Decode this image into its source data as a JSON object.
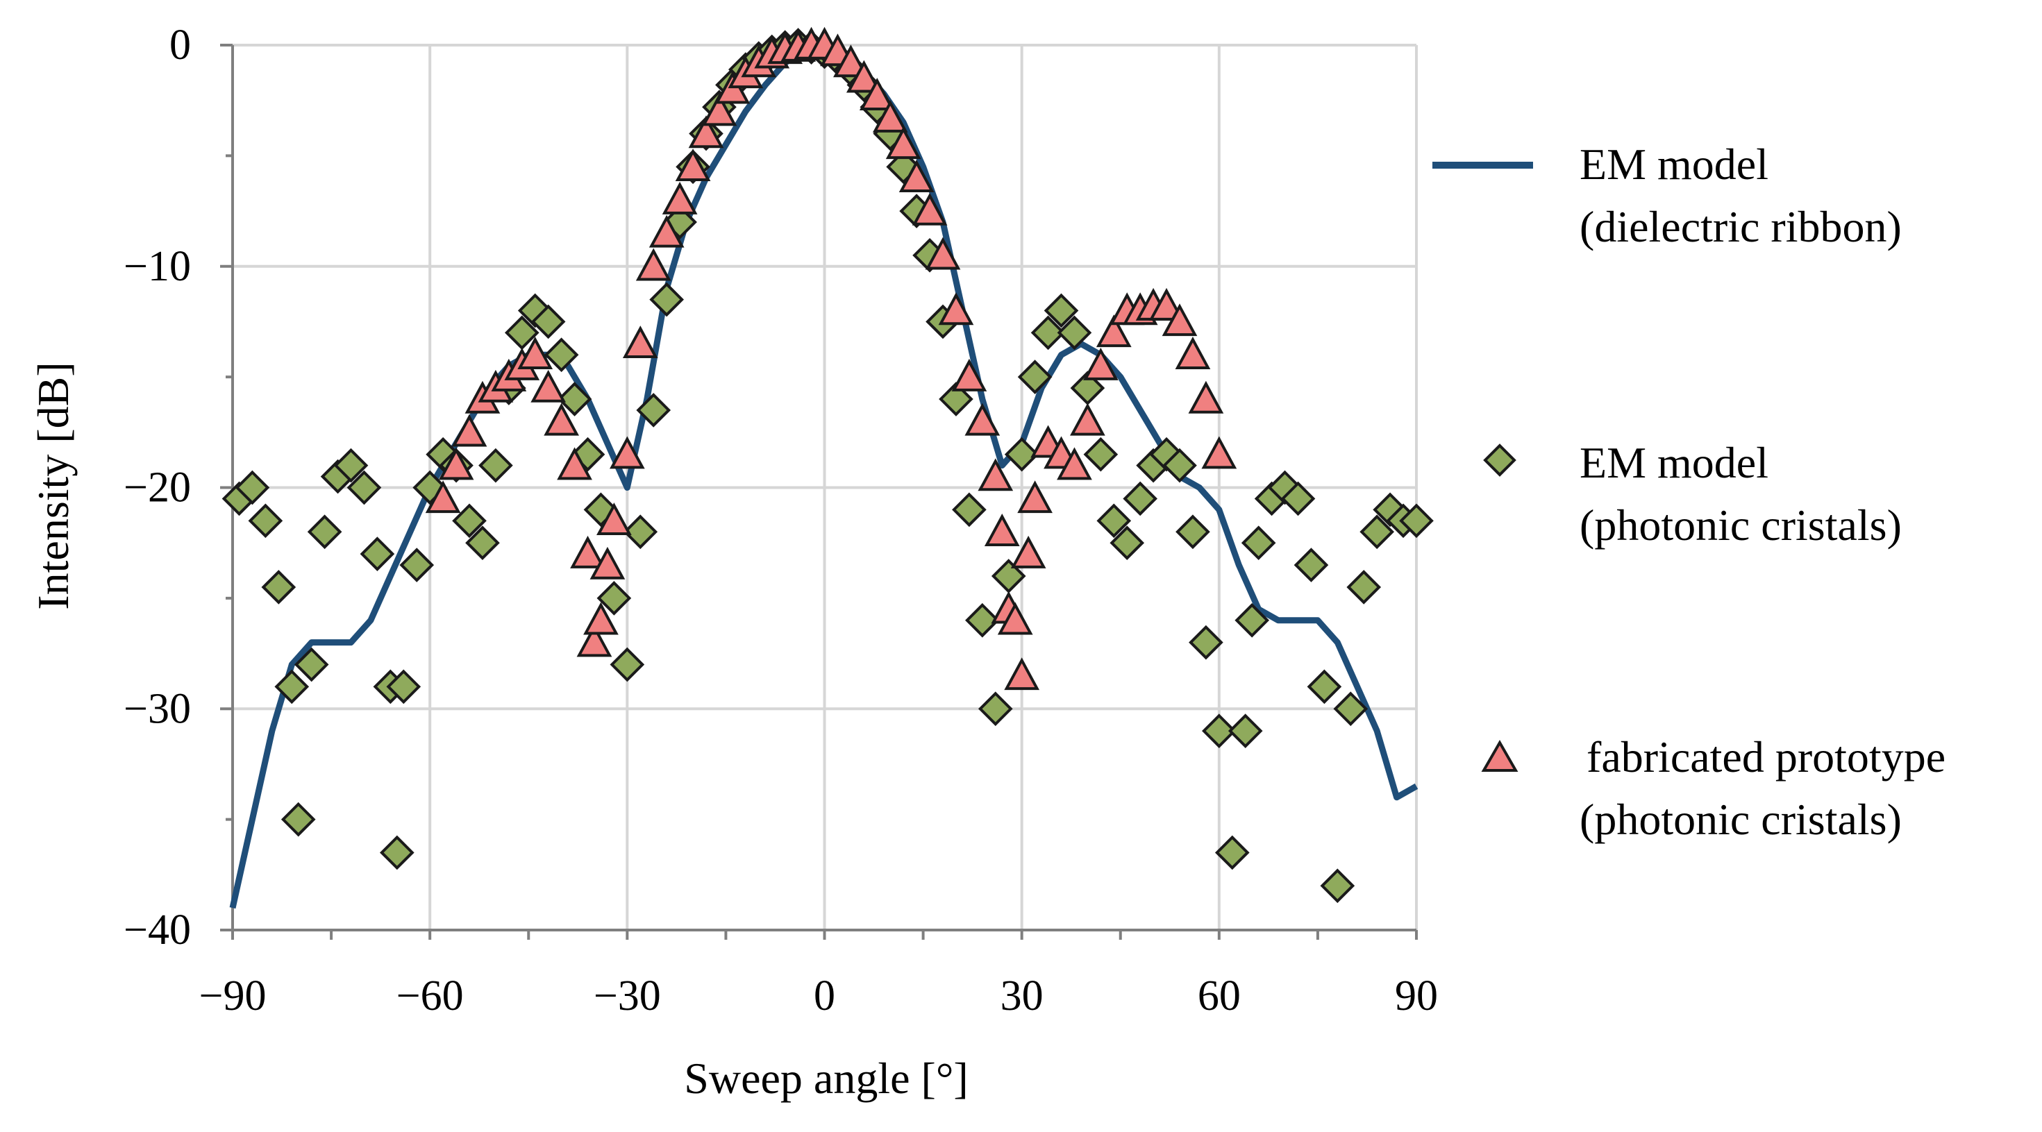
{
  "chart_data": {
    "type": "line",
    "title": "",
    "xlabel": "Sweep angle [°]",
    "ylabel": "Intensity [dB]",
    "xlim": [
      -90,
      90
    ],
    "ylim": [
      -40,
      0
    ],
    "xticks": [
      -90,
      -60,
      -30,
      0,
      30,
      60,
      90
    ],
    "xtick_labels": [
      "−90",
      "−60",
      "−30",
      "0",
      "30",
      "60",
      "90"
    ],
    "yticks": [
      0,
      -10,
      -20,
      -30,
      -40
    ],
    "ytick_labels": [
      "0",
      "−10",
      "−20",
      "−30",
      "−40"
    ],
    "grid": true,
    "legend_position": "right",
    "series": [
      {
        "name": "EM model (dielectric ribbon)",
        "legend_line1": "EM model",
        "legend_line2": "(dielectric ribbon)",
        "style": "line",
        "color": "#1f4e79",
        "x": [
          -90,
          -87,
          -84,
          -81,
          -78,
          -75,
          -72,
          -69,
          -66,
          -63,
          -60,
          -57,
          -54,
          -51,
          -48,
          -45,
          -42,
          -39,
          -36,
          -33,
          -30,
          -27,
          -24,
          -21,
          -18,
          -15,
          -12,
          -9,
          -6,
          -3,
          0,
          3,
          6,
          9,
          12,
          15,
          18,
          21,
          24,
          27,
          30,
          33,
          36,
          39,
          42,
          45,
          48,
          51,
          54,
          57,
          60,
          63,
          66,
          69,
          72,
          75,
          78,
          81,
          84,
          87,
          90
        ],
        "y": [
          -39,
          -35,
          -31,
          -28,
          -27,
          -27,
          -27,
          -26,
          -24,
          -22,
          -20,
          -18.5,
          -17,
          -15.5,
          -14.5,
          -14,
          -14,
          -14.5,
          -16,
          -18,
          -20,
          -16,
          -11,
          -8,
          -6,
          -4.5,
          -3,
          -1.8,
          -0.8,
          -0.2,
          0,
          -0.5,
          -1.2,
          -2.2,
          -3.5,
          -5.5,
          -8,
          -12,
          -16,
          -19,
          -18,
          -15.5,
          -14,
          -13.5,
          -14,
          -15,
          -16.5,
          -18,
          -19.5,
          -20,
          -21,
          -23.5,
          -25.5,
          -26,
          -26,
          -26,
          -27,
          -29,
          -31,
          -34,
          -33.5
        ]
      },
      {
        "name": "EM model (photonic cristals)",
        "legend_line1": "EM model",
        "legend_line2": "(photonic cristals)",
        "style": "diamond",
        "color": "#8faa5c",
        "x": [
          -89,
          -87,
          -85,
          -83,
          -81,
          -80,
          -78,
          -76,
          -74,
          -72,
          -70,
          -68,
          -66,
          -65,
          -64,
          -62,
          -60,
          -58,
          -56,
          -54,
          -52,
          -50,
          -48,
          -46,
          -44,
          -42,
          -40,
          -38,
          -36,
          -34,
          -32,
          -30,
          -28,
          -26,
          -24,
          -22,
          -20,
          -18,
          -16,
          -14,
          -12,
          -10,
          -8,
          -6,
          -4,
          -2,
          0,
          2,
          4,
          6,
          8,
          10,
          12,
          14,
          16,
          18,
          20,
          22,
          24,
          26,
          28,
          30,
          32,
          34,
          36,
          38,
          40,
          42,
          44,
          46,
          48,
          50,
          52,
          54,
          56,
          58,
          60,
          62,
          64,
          65,
          66,
          68,
          70,
          72,
          74,
          76,
          78,
          80,
          82,
          84,
          86,
          88,
          90
        ],
        "y": [
          -20.5,
          -20,
          -21.5,
          -24.5,
          -29,
          -35,
          -28,
          -22,
          -19.5,
          -19,
          -20,
          -23,
          -29,
          -36.5,
          -29,
          -23.5,
          -20,
          -18.5,
          -19,
          -21.5,
          -22.5,
          -19,
          -15.5,
          -13,
          -12,
          -12.5,
          -14,
          -16,
          -18.5,
          -21,
          -25,
          -28,
          -22,
          -16.5,
          -11.5,
          -8,
          -5.5,
          -4,
          -2.8,
          -1.8,
          -1.1,
          -0.6,
          -0.3,
          -0.1,
          0,
          -0.1,
          -0.3,
          -0.6,
          -1.1,
          -1.8,
          -2.8,
          -4,
          -5.5,
          -7.5,
          -9.5,
          -12.5,
          -16,
          -21,
          -26,
          -30,
          -24,
          -18.5,
          -15,
          -13,
          -12,
          -13,
          -15.5,
          -18.5,
          -21.5,
          -22.5,
          -20.5,
          -19,
          -18.5,
          -19,
          -22,
          -27,
          -31,
          -36.5,
          -31,
          -26,
          -22.5,
          -20.5,
          -20,
          -20.5,
          -23.5,
          -29,
          -38,
          -30,
          -24.5,
          -22,
          -21,
          -21.5,
          -21.5
        ]
      },
      {
        "name": "fabricated prototype (photonic cristals)",
        "legend_line1": "fabricated prototype",
        "legend_line2": "(photonic cristals)",
        "style": "triangle",
        "color": "#f08080",
        "x": [
          -58,
          -56,
          -54,
          -52,
          -50,
          -48,
          -46,
          -44,
          -42,
          -40,
          -38,
          -36,
          -35,
          -34,
          -33,
          -32,
          -30,
          -28,
          -26,
          -24,
          -22,
          -20,
          -18,
          -16,
          -14,
          -12,
          -10,
          -8,
          -6,
          -4,
          -2,
          0,
          2,
          4,
          6,
          8,
          10,
          12,
          14,
          16,
          18,
          20,
          22,
          24,
          26,
          27,
          28,
          29,
          30,
          31,
          32,
          34,
          36,
          38,
          40,
          42,
          44,
          46,
          48,
          50,
          52,
          54,
          56,
          58,
          60
        ],
        "y": [
          -20.5,
          -19,
          -17.5,
          -16,
          -15.5,
          -15,
          -14.5,
          -14,
          -15.5,
          -17,
          -19,
          -23,
          -27,
          -26,
          -23.5,
          -21.5,
          -18.5,
          -13.5,
          -10,
          -8.5,
          -7,
          -5.5,
          -4,
          -3,
          -2,
          -1.3,
          -0.8,
          -0.4,
          -0.2,
          -0.1,
          0,
          0,
          -0.3,
          -0.8,
          -1.5,
          -2.3,
          -3.3,
          -4.5,
          -6,
          -7.5,
          -9.5,
          -12,
          -15,
          -17,
          -19.5,
          -22,
          -25.5,
          -26,
          -28.5,
          -23,
          -20.5,
          -18,
          -18.5,
          -19,
          -17,
          -14.5,
          -13,
          -12,
          -12,
          -11.8,
          -11.8,
          -12.5,
          -14,
          -16,
          -18.5
        ]
      }
    ]
  }
}
